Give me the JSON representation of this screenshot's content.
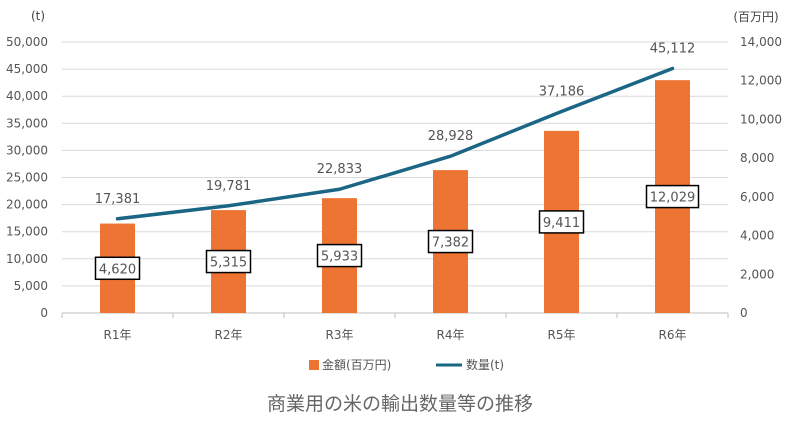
{
  "chart_data": {
    "type": "bar+line",
    "title": "商業用の米の輸出数量等の推移",
    "categories": [
      "R1年",
      "R2年",
      "R3年",
      "R4年",
      "R5年",
      "R6年"
    ],
    "series": [
      {
        "name": "金額(百万円)",
        "type": "bar",
        "axis": "right",
        "color": "#ED7433",
        "values": [
          4620,
          5315,
          5933,
          7382,
          9411,
          12029
        ],
        "labels": [
          "4,620",
          "5,315",
          "5,933",
          "7,382",
          "9,411",
          "12,029"
        ]
      },
      {
        "name": "数量(t)",
        "type": "line",
        "axis": "left",
        "color": "#1B6585",
        "values": [
          17381,
          19781,
          22833,
          28928,
          37186,
          45112
        ],
        "labels": [
          "17,381",
          "19,781",
          "22,833",
          "28,928",
          "37,186",
          "45,112"
        ]
      }
    ],
    "left_axis": {
      "unit": "(t)",
      "ylim": [
        0,
        50000
      ],
      "ticks": [
        "0",
        "5,000",
        "10,000",
        "15,000",
        "20,000",
        "25,000",
        "30,000",
        "35,000",
        "40,000",
        "45,000",
        "50,000"
      ]
    },
    "right_axis": {
      "unit": "(百万円)",
      "ylim": [
        0,
        14000
      ],
      "ticks": [
        "0",
        "2,000",
        "4,000",
        "6,000",
        "8,000",
        "10,000",
        "12,000",
        "14,000"
      ]
    },
    "grid": true,
    "legend": "bottom"
  }
}
